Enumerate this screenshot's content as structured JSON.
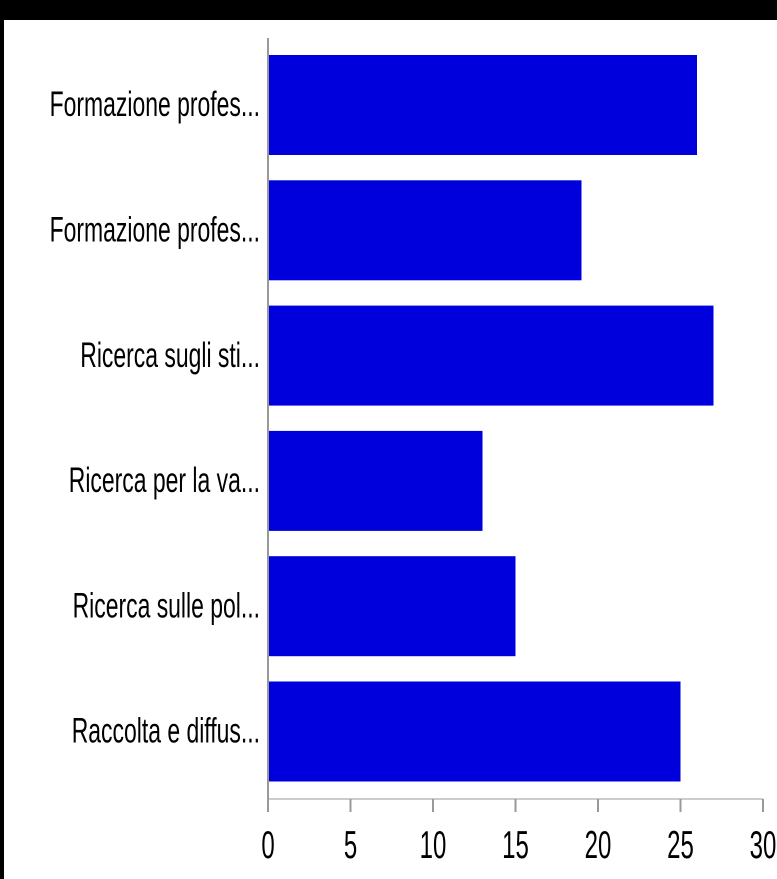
{
  "chart_data": {
    "type": "bar",
    "orientation": "horizontal",
    "categories": [
      "Formazione profes...",
      "Formazione profes...",
      "Ricerca sugli sti...",
      "Ricerca per la va...",
      "Ricerca sulle pol...",
      "Raccolta e diffus..."
    ],
    "values": [
      26,
      19,
      27,
      13,
      15,
      25
    ],
    "xticks": [
      "0",
      "5",
      "10",
      "15",
      "20",
      "25",
      "30"
    ],
    "xlim": [
      0,
      30
    ],
    "grid": false,
    "legend": "none",
    "bar_color": "#0000dd",
    "axis_color": "#999999",
    "background": "#ffffff",
    "frame_color": "#000000"
  }
}
